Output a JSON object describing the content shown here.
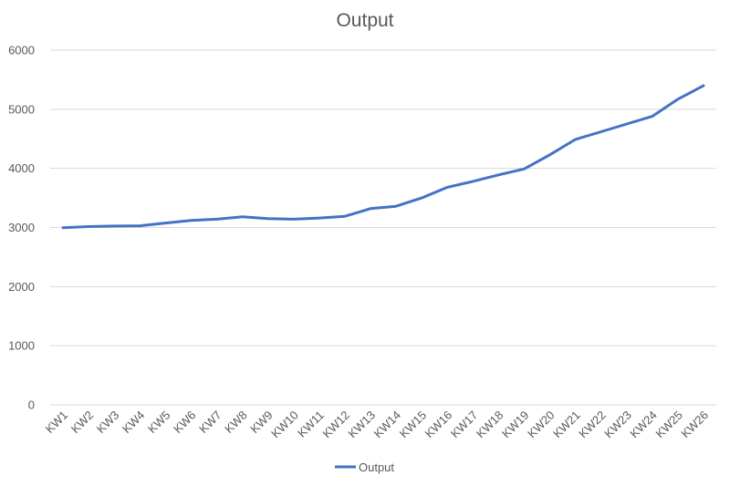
{
  "chart_data": {
    "type": "line",
    "title": "Output",
    "categories": [
      "KW1",
      "KW2",
      "KW3",
      "KW4",
      "KW5",
      "KW6",
      "KW7",
      "KW8",
      "KW9",
      "KW10",
      "KW11",
      "KW12",
      "KW13",
      "KW14",
      "KW15",
      "KW16",
      "KW17",
      "KW18",
      "KW19",
      "KW20",
      "KW21",
      "KW22",
      "KW23",
      "KW24",
      "KW25",
      "KW26"
    ],
    "series": [
      {
        "name": "Output",
        "color": "#4472C4",
        "values": [
          2995,
          3015,
          3025,
          3030,
          3075,
          3120,
          3140,
          3180,
          3150,
          3140,
          3160,
          3190,
          3320,
          3360,
          3500,
          3680,
          3780,
          3890,
          3990,
          4230,
          4490,
          4620,
          4750,
          4880,
          5170,
          5400
        ]
      }
    ],
    "ylim": [
      0,
      6000
    ],
    "yticks": [
      0,
      1000,
      2000,
      3000,
      4000,
      5000,
      6000
    ],
    "grid": true,
    "legend": "bottom"
  }
}
